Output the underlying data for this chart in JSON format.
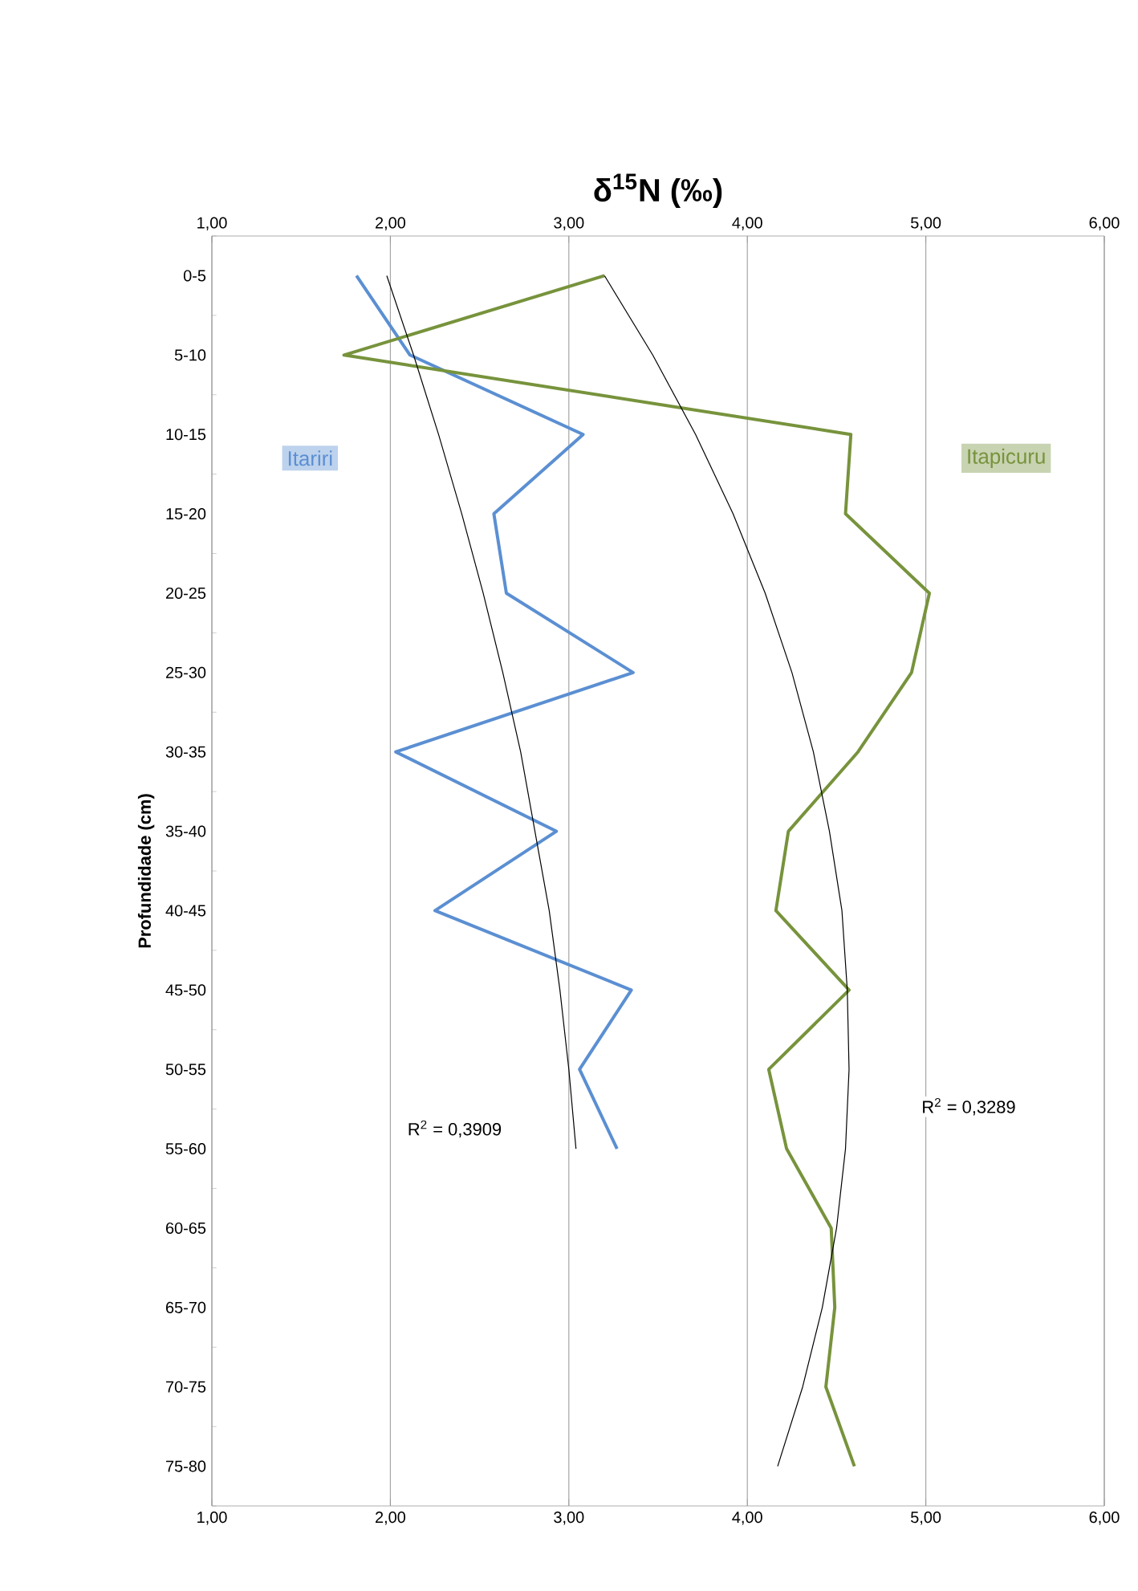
{
  "chart_data": {
    "type": "line",
    "title": "δ$^{15}$N   (‰)",
    "ylabel": "Profundidade (cm)",
    "orientation": "horizontal",
    "categories": [
      "0-5",
      "5-10",
      "10-15",
      "15-20",
      "20-25",
      "25-30",
      "30-35",
      "35-40",
      "40-45",
      "45-50",
      "50-55",
      "55-60",
      "60-65",
      "65-70",
      "70-75",
      "75-80"
    ],
    "series": [
      {
        "name": "Itariri",
        "color": "#5b8fd2",
        "values": [
          1.81,
          2.11,
          3.08,
          2.58,
          2.65,
          3.36,
          2.03,
          2.93,
          2.25,
          3.35,
          3.06,
          3.27,
          null,
          null,
          null,
          null
        ]
      },
      {
        "name": "Itapicuru",
        "color": "#77933c",
        "values": [
          3.2,
          1.74,
          4.58,
          4.55,
          5.02,
          4.92,
          4.62,
          4.23,
          4.16,
          4.57,
          4.12,
          4.22,
          4.47,
          4.49,
          4.44,
          4.6
        ]
      },
      {
        "color": "#000000",
        "values": [
          1.98,
          2.13,
          2.27,
          2.4,
          2.52,
          2.63,
          2.73,
          2.81,
          2.89,
          2.95,
          3.0,
          3.04,
          null,
          null,
          null,
          null
        ]
      },
      {
        "color": "#000000",
        "values": [
          3.2,
          3.47,
          3.71,
          3.92,
          4.1,
          4.25,
          4.37,
          4.46,
          4.53,
          4.56,
          4.57,
          4.55,
          4.5,
          4.42,
          4.31,
          4.17
        ]
      }
    ],
    "xlim": [
      1,
      6
    ],
    "xticks": [
      {
        "value": 1,
        "label": "1,00"
      },
      {
        "value": 2,
        "label": "2,00"
      },
      {
        "value": 3,
        "label": "3,00"
      },
      {
        "value": 4,
        "label": "4,00"
      },
      {
        "value": 5,
        "label": "5,00"
      },
      {
        "value": 6,
        "label": "6,00"
      }
    ],
    "x2lim": [
      1,
      6
    ],
    "x2ticks": [
      {
        "value": 1,
        "label": "1,00"
      },
      {
        "value": 2,
        "label": "2,00"
      },
      {
        "value": 3,
        "label": "3,00"
      },
      {
        "value": 4,
        "label": "4,00"
      },
      {
        "value": 5,
        "label": "5,00"
      },
      {
        "value": 6,
        "label": "6,00"
      }
    ],
    "grid": "x",
    "legend": false,
    "annotations": [
      "R$^{2}$ = 0,3909",
      "R$^{2}$ = 0,3289"
    ]
  }
}
